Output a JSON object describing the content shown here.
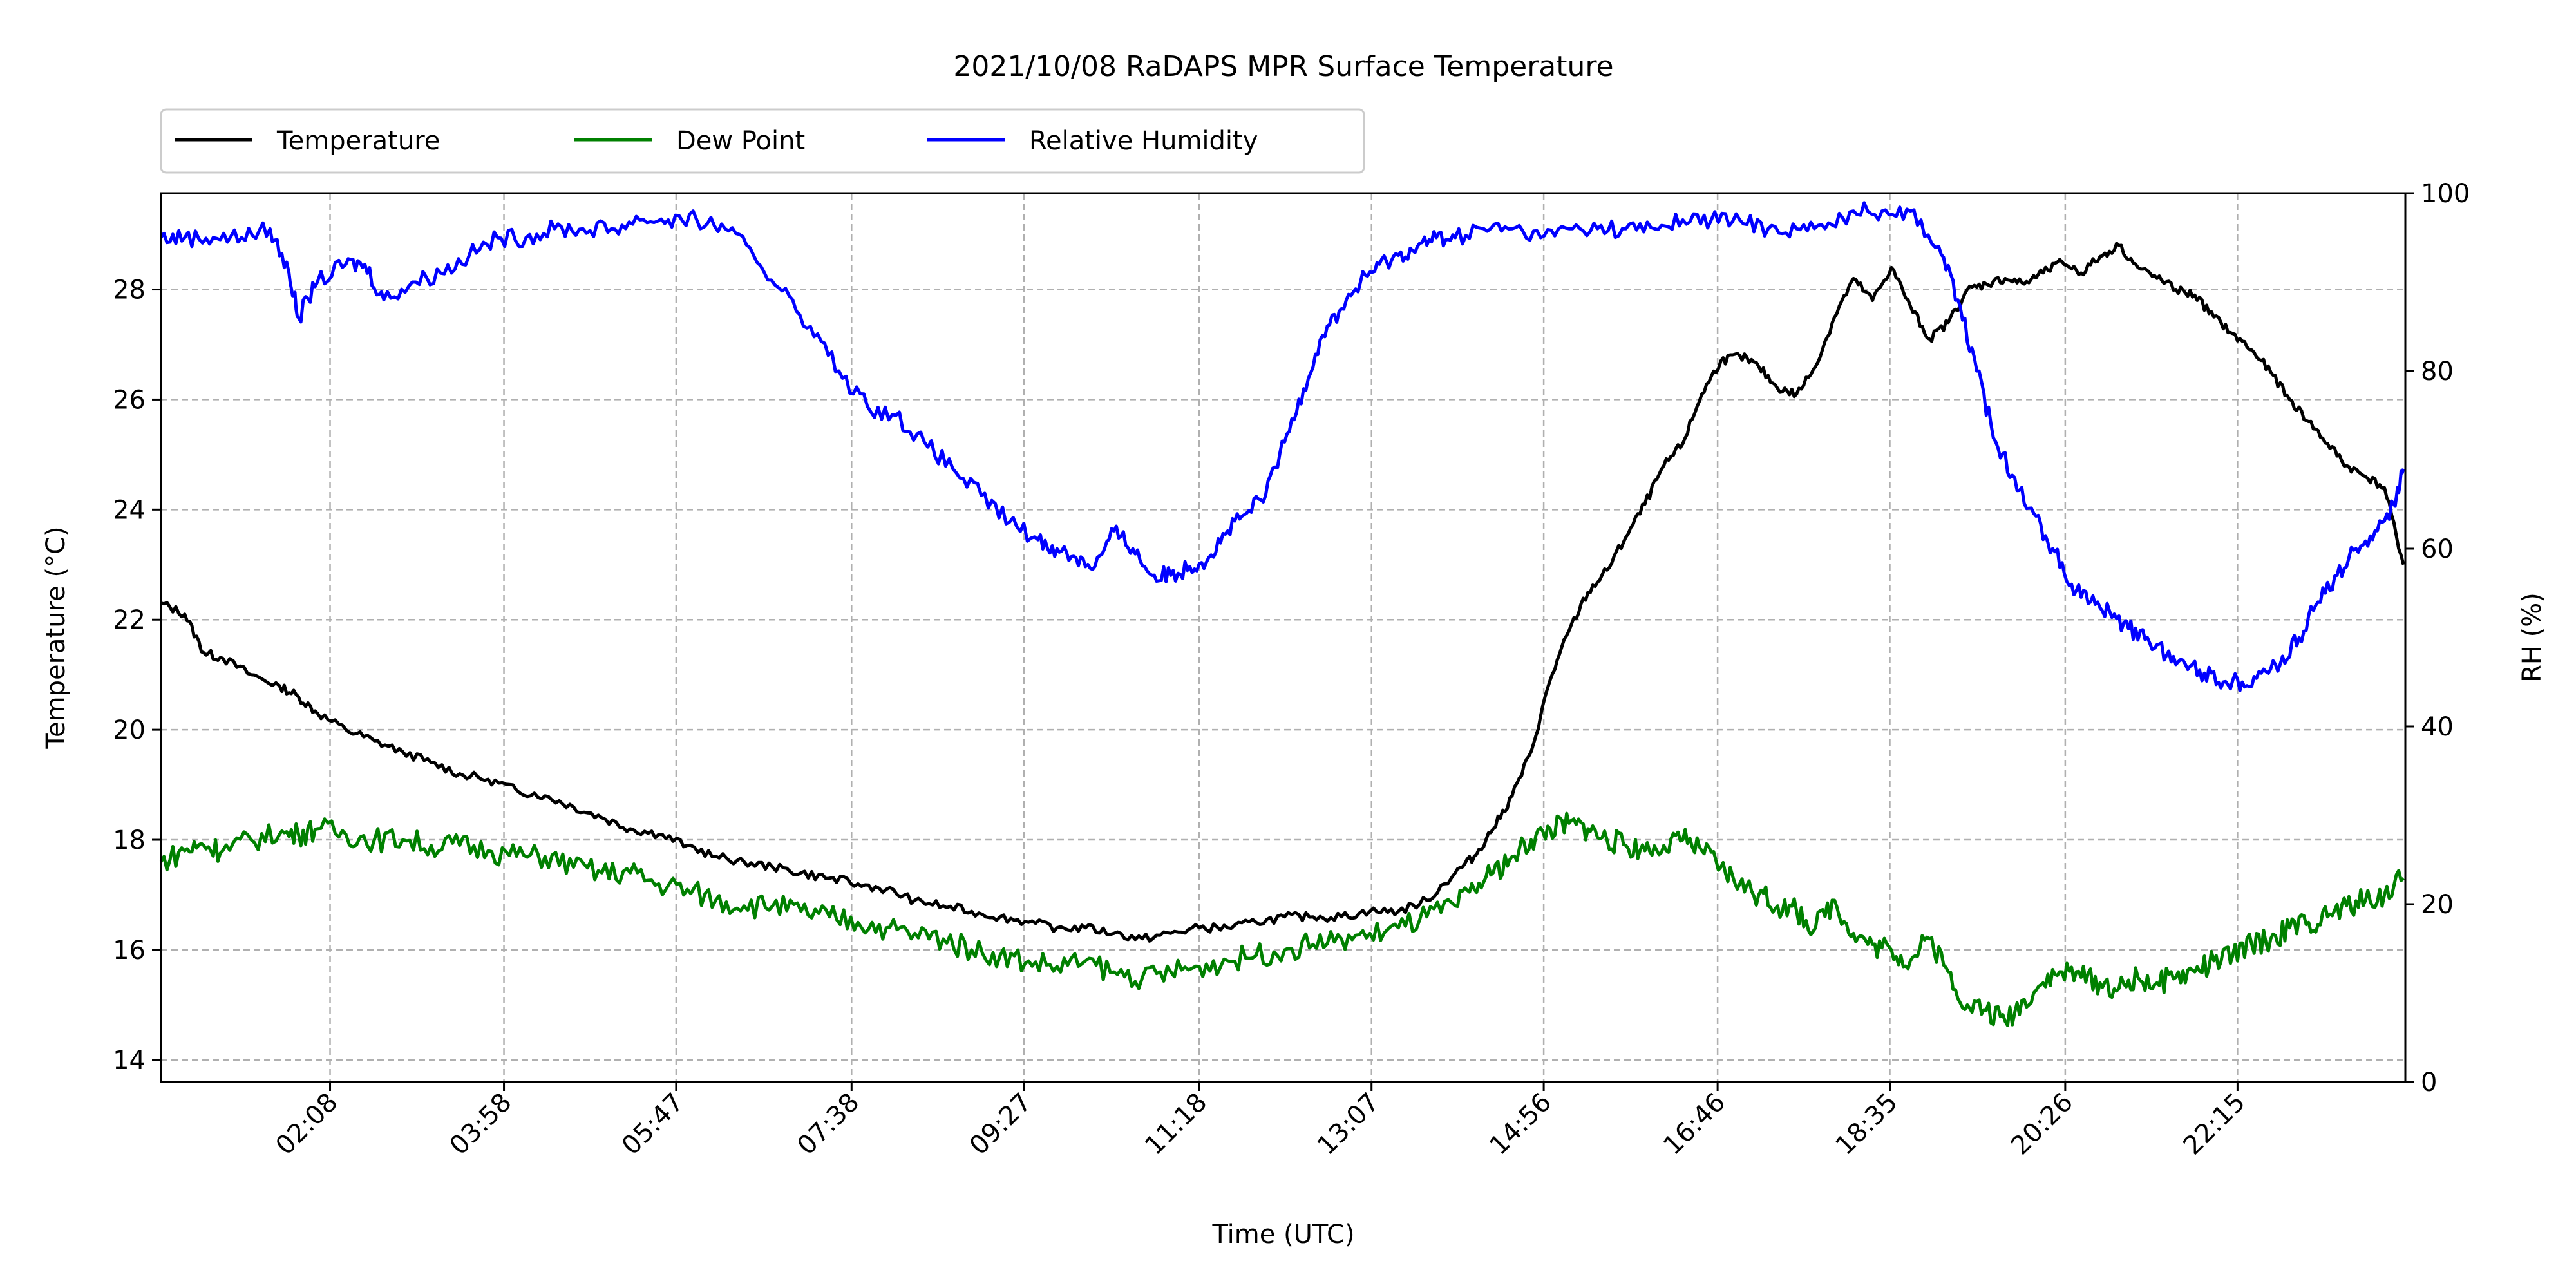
{
  "chart_data": {
    "type": "line",
    "title": "2021/10/08 RaDAPS MPR Surface Temperature",
    "xlabel": "Time (UTC)",
    "ylabel": "Temperature ($^\\circ$C)",
    "ylabel_display": "Temperature (°C)",
    "y2label": "RH (%)",
    "x_ticks": [
      "02:08",
      "03:58",
      "05:47",
      "07:38",
      "09:27",
      "11:18",
      "13:07",
      "14:56",
      "16:46",
      "18:35",
      "20:26",
      "22:15"
    ],
    "x_tick_hours": [
      2.133,
      3.967,
      5.783,
      7.633,
      9.45,
      11.3,
      13.117,
      14.933,
      16.767,
      18.583,
      20.433,
      22.25
    ],
    "xlim": [
      0.35,
      24.02
    ],
    "ylim": [
      13.6,
      29.75
    ],
    "y_ticks": [
      14,
      16,
      18,
      20,
      22,
      24,
      26,
      28
    ],
    "y2lim": [
      0,
      100
    ],
    "y2_ticks": [
      0,
      20,
      40,
      60,
      80,
      100
    ],
    "grid": true,
    "legend_position": "top-left, above plot",
    "series": [
      {
        "name": "Temperature",
        "color": "#000000",
        "axis": "left",
        "x": [
          0.35,
          0.6,
          0.8,
          1.0,
          1.3,
          1.6,
          1.8,
          2.0,
          2.3,
          2.6,
          2.9,
          3.2,
          3.5,
          3.8,
          4.1,
          4.4,
          4.7,
          5.0,
          5.3,
          5.6,
          5.9,
          6.2,
          6.5,
          6.8,
          7.1,
          7.4,
          7.7,
          8.0,
          8.3,
          8.6,
          8.9,
          9.2,
          9.5,
          9.8,
          10.1,
          10.4,
          10.7,
          11.0,
          11.3,
          11.6,
          11.9,
          12.2,
          12.5,
          12.8,
          13.1,
          13.4,
          13.7,
          14.0,
          14.2,
          14.4,
          14.6,
          14.8,
          15.0,
          15.2,
          15.4,
          15.6,
          15.8,
          16.0,
          16.2,
          16.4,
          16.6,
          16.8,
          17.0,
          17.2,
          17.4,
          17.6,
          17.8,
          18.0,
          18.2,
          18.4,
          18.6,
          18.8,
          19.0,
          19.2,
          19.4,
          19.6,
          19.8,
          20.0,
          20.2,
          20.4,
          20.6,
          20.8,
          21.0,
          21.2,
          21.4,
          21.6,
          21.8,
          22.0,
          22.2,
          22.4,
          22.6,
          22.8,
          23.0,
          23.2,
          23.4,
          23.6,
          23.8,
          24.0
        ],
        "y": [
          22.3,
          22.1,
          21.4,
          21.3,
          21.0,
          20.8,
          20.6,
          20.3,
          20.0,
          19.8,
          19.6,
          19.4,
          19.2,
          19.1,
          18.9,
          18.8,
          18.6,
          18.4,
          18.2,
          18.1,
          17.9,
          17.7,
          17.6,
          17.5,
          17.4,
          17.3,
          17.2,
          17.1,
          16.9,
          16.8,
          16.7,
          16.6,
          16.5,
          16.4,
          16.4,
          16.3,
          16.2,
          16.3,
          16.4,
          16.4,
          16.5,
          16.6,
          16.6,
          16.6,
          16.7,
          16.7,
          16.9,
          17.4,
          17.7,
          18.2,
          18.8,
          19.6,
          20.9,
          21.8,
          22.5,
          22.9,
          23.5,
          24.1,
          24.8,
          25.2,
          26.1,
          26.7,
          26.8,
          26.6,
          26.2,
          26.1,
          26.6,
          27.5,
          28.2,
          27.8,
          28.4,
          27.7,
          27.1,
          27.4,
          28.0,
          28.1,
          28.2,
          28.1,
          28.3,
          28.5,
          28.3,
          28.6,
          28.8,
          28.4,
          28.2,
          28.0,
          27.9,
          27.5,
          27.2,
          26.9,
          26.5,
          26.0,
          25.6,
          25.2,
          24.8,
          24.6,
          24.4,
          23.0
        ]
      },
      {
        "name": "Dew Point",
        "color": "#008000",
        "axis": "left",
        "x": [
          0.35,
          0.6,
          0.8,
          1.0,
          1.3,
          1.6,
          1.8,
          2.0,
          2.3,
          2.6,
          2.9,
          3.2,
          3.5,
          3.8,
          4.1,
          4.4,
          4.7,
          5.0,
          5.3,
          5.6,
          5.9,
          6.2,
          6.5,
          6.8,
          7.1,
          7.4,
          7.7,
          8.0,
          8.3,
          8.6,
          8.9,
          9.2,
          9.5,
          9.8,
          10.1,
          10.4,
          10.7,
          11.0,
          11.3,
          11.6,
          11.9,
          12.2,
          12.5,
          12.8,
          13.1,
          13.4,
          13.7,
          14.0,
          14.2,
          14.4,
          14.6,
          14.8,
          15.0,
          15.2,
          15.4,
          15.6,
          15.8,
          16.0,
          16.2,
          16.4,
          16.6,
          16.8,
          17.0,
          17.2,
          17.4,
          17.6,
          17.8,
          18.0,
          18.2,
          18.4,
          18.6,
          18.8,
          19.0,
          19.2,
          19.4,
          19.6,
          19.8,
          20.0,
          20.2,
          20.4,
          20.6,
          20.8,
          21.0,
          21.2,
          21.4,
          21.6,
          21.8,
          22.0,
          22.2,
          22.4,
          22.6,
          22.8,
          23.0,
          23.2,
          23.4,
          23.6,
          23.8,
          24.0
        ],
        "y": [
          17.6,
          17.8,
          17.9,
          17.8,
          18.0,
          18.1,
          18.1,
          18.2,
          18.1,
          18.0,
          18.0,
          17.9,
          17.9,
          17.8,
          17.7,
          17.7,
          17.5,
          17.4,
          17.4,
          17.2,
          17.1,
          16.9,
          16.8,
          16.8,
          16.7,
          16.6,
          16.5,
          16.4,
          16.3,
          16.2,
          16.0,
          15.9,
          15.8,
          15.7,
          15.8,
          15.6,
          15.5,
          15.6,
          15.7,
          15.8,
          15.9,
          16.0,
          16.1,
          16.2,
          16.3,
          16.4,
          16.6,
          16.8,
          17.1,
          17.4,
          17.7,
          18.0,
          18.2,
          18.3,
          18.2,
          18.0,
          17.9,
          17.8,
          17.9,
          18.0,
          17.8,
          17.5,
          17.2,
          17.0,
          16.8,
          16.7,
          16.4,
          16.9,
          16.3,
          16.1,
          16.0,
          15.8,
          16.2,
          15.6,
          15.0,
          14.9,
          14.7,
          15.1,
          15.4,
          15.6,
          15.5,
          15.4,
          15.3,
          15.5,
          15.4,
          15.5,
          15.6,
          15.8,
          15.9,
          16.1,
          16.2,
          16.4,
          16.5,
          16.6,
          16.8,
          16.9,
          17.0,
          17.3
        ]
      },
      {
        "name": "Relative Humidity",
        "color": "#0000ff",
        "axis": "right",
        "x": [
          0.35,
          0.6,
          0.9,
          1.2,
          1.5,
          1.7,
          1.8,
          2.0,
          2.3,
          2.5,
          2.7,
          3.0,
          3.3,
          3.6,
          3.9,
          4.2,
          4.5,
          4.8,
          5.1,
          5.4,
          5.7,
          6.0,
          6.3,
          6.6,
          6.9,
          7.2,
          7.5,
          7.8,
          8.1,
          8.4,
          8.7,
          9.0,
          9.3,
          9.6,
          9.8,
          10.0,
          10.2,
          10.4,
          10.6,
          10.8,
          11.0,
          11.2,
          11.4,
          11.6,
          11.8,
          12.0,
          12.2,
          12.4,
          12.6,
          12.8,
          13.0,
          13.2,
          13.4,
          13.6,
          13.8,
          14.0,
          14.3,
          14.6,
          14.9,
          15.2,
          15.5,
          15.8,
          16.1,
          16.4,
          16.7,
          17.0,
          17.3,
          17.6,
          17.9,
          18.2,
          18.5,
          18.8,
          19.1,
          19.3,
          19.5,
          19.7,
          19.9,
          20.1,
          20.3,
          20.5,
          20.7,
          20.9,
          21.1,
          21.3,
          21.5,
          21.7,
          21.9,
          22.1,
          22.3,
          22.5,
          22.7,
          22.9,
          23.1,
          23.3,
          23.5,
          23.7,
          23.9,
          24.0
        ],
        "y": [
          95,
          95,
          95,
          95,
          96,
          91,
          86,
          90,
          92,
          92,
          88,
          90,
          91,
          93,
          95,
          95,
          96,
          96,
          96,
          97,
          97,
          97,
          96,
          93,
          89,
          85,
          80,
          76,
          75,
          72,
          69,
          66,
          63,
          61,
          60,
          59,
          58,
          62,
          60,
          57,
          57,
          58,
          59,
          62,
          64,
          66,
          72,
          78,
          84,
          87,
          90,
          92,
          93,
          94,
          95,
          95,
          96,
          96,
          95,
          96,
          96,
          96,
          96,
          97,
          97,
          97,
          96,
          96,
          96,
          98,
          98,
          98,
          94,
          88,
          80,
          72,
          68,
          64,
          60,
          56,
          54,
          53,
          51,
          50,
          48,
          47,
          46,
          45,
          45,
          46,
          47,
          50,
          54,
          57,
          60,
          62,
          65,
          69
        ]
      }
    ]
  }
}
